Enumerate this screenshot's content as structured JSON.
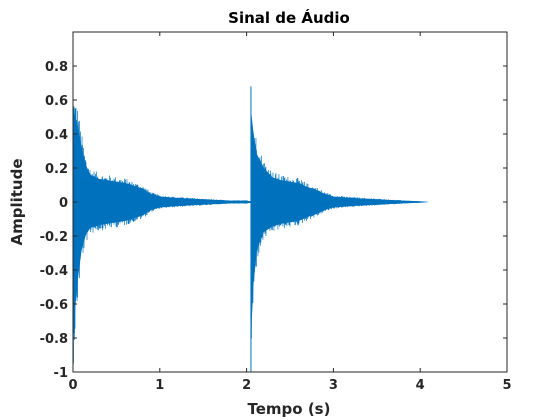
{
  "chart_data": {
    "type": "line",
    "title": "Sinal de Áudio",
    "xlabel": "Tempo (s)",
    "ylabel": "Amplitude",
    "xlim": [
      0,
      5
    ],
    "ylim": [
      -1,
      1
    ],
    "xticks": [
      0,
      1,
      2,
      3,
      4,
      5
    ],
    "xtick_labels": [
      "0",
      "1",
      "2",
      "3",
      "4",
      "5"
    ],
    "yticks": [
      0.8,
      0.6,
      0.4,
      0.2,
      0,
      -0.2,
      -0.4,
      -0.6,
      -0.8,
      -1
    ],
    "ytick_labels": [
      "0.8",
      "0.6",
      "0.4",
      "0.2",
      "0",
      "-0.2",
      "-0.4",
      "-0.6",
      "-0.8",
      "-1"
    ],
    "grid": false,
    "box": true,
    "series": [
      {
        "color": "#0072BD",
        "segments": [
          {
            "t_start": 0.0,
            "t_end": 2.05,
            "points": [
              {
                "t": 0.0,
                "max": 0.68,
                "min": -1.0
              },
              {
                "t": 0.03,
                "max": 0.62,
                "min": -0.75
              },
              {
                "t": 0.06,
                "max": 0.55,
                "min": -0.55
              },
              {
                "t": 0.1,
                "max": 0.4,
                "min": -0.35
              },
              {
                "t": 0.15,
                "max": 0.27,
                "min": -0.24
              },
              {
                "t": 0.2,
                "max": 0.2,
                "min": -0.19
              },
              {
                "t": 0.3,
                "max": 0.17,
                "min": -0.17
              },
              {
                "t": 0.4,
                "max": 0.16,
                "min": -0.16
              },
              {
                "t": 0.5,
                "max": 0.15,
                "min": -0.15
              },
              {
                "t": 0.6,
                "max": 0.14,
                "min": -0.14
              },
              {
                "t": 0.7,
                "max": 0.12,
                "min": -0.12
              },
              {
                "t": 0.8,
                "max": 0.1,
                "min": -0.1
              },
              {
                "t": 0.9,
                "max": 0.06,
                "min": -0.06
              },
              {
                "t": 1.0,
                "max": 0.04,
                "min": -0.04
              },
              {
                "t": 1.2,
                "max": 0.03,
                "min": -0.03
              },
              {
                "t": 1.5,
                "max": 0.02,
                "min": -0.02
              },
              {
                "t": 1.8,
                "max": 0.01,
                "min": -0.01
              },
              {
                "t": 2.0,
                "max": 0.01,
                "min": -0.01
              },
              {
                "t": 2.05,
                "max": 0.005,
                "min": -0.005
              }
            ]
          },
          {
            "t_start": 2.05,
            "t_end": 4.1,
            "points": [
              {
                "t": 2.05,
                "max": 0.68,
                "min": -1.0
              },
              {
                "t": 2.08,
                "max": 0.5,
                "min": -0.6
              },
              {
                "t": 2.12,
                "max": 0.35,
                "min": -0.35
              },
              {
                "t": 2.2,
                "max": 0.25,
                "min": -0.22
              },
              {
                "t": 2.3,
                "max": 0.18,
                "min": -0.18
              },
              {
                "t": 2.4,
                "max": 0.16,
                "min": -0.16
              },
              {
                "t": 2.5,
                "max": 0.15,
                "min": -0.15
              },
              {
                "t": 2.6,
                "max": 0.14,
                "min": -0.14
              },
              {
                "t": 2.7,
                "max": 0.11,
                "min": -0.11
              },
              {
                "t": 2.8,
                "max": 0.09,
                "min": -0.09
              },
              {
                "t": 2.9,
                "max": 0.06,
                "min": -0.06
              },
              {
                "t": 3.0,
                "max": 0.04,
                "min": -0.04
              },
              {
                "t": 3.2,
                "max": 0.03,
                "min": -0.03
              },
              {
                "t": 3.5,
                "max": 0.02,
                "min": -0.02
              },
              {
                "t": 3.8,
                "max": 0.01,
                "min": -0.01
              },
              {
                "t": 4.0,
                "max": 0.005,
                "min": -0.005
              },
              {
                "t": 4.1,
                "max": 0.0,
                "min": 0.0
              }
            ]
          }
        ]
      }
    ]
  }
}
